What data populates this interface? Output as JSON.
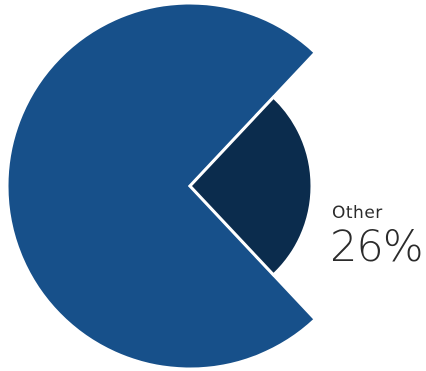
{
  "chart_data": {
    "type": "pie",
    "slices": [
      {
        "label": "",
        "value": 74,
        "color": "#17508a"
      },
      {
        "label": "Other",
        "value": 26,
        "color": "#0b2c4d"
      }
    ],
    "display_value": "26%",
    "colors": {
      "main": "#17508a",
      "other": "#0b2c4d",
      "separator": "#ffffff"
    }
  }
}
